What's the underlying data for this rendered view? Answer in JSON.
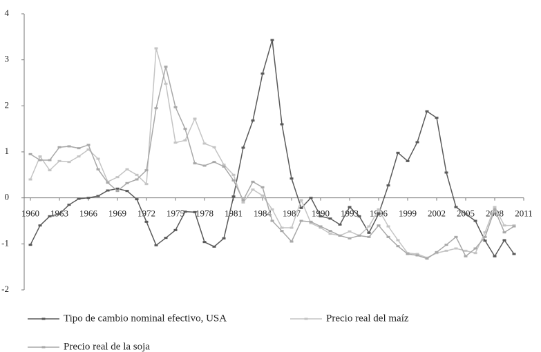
{
  "chart_data": {
    "type": "line",
    "x": [
      1960,
      1961,
      1962,
      1963,
      1964,
      1965,
      1966,
      1967,
      1968,
      1969,
      1970,
      1971,
      1972,
      1973,
      1974,
      1975,
      1976,
      1977,
      1978,
      1979,
      1980,
      1981,
      1982,
      1983,
      1984,
      1985,
      1986,
      1987,
      1988,
      1989,
      1990,
      1991,
      1992,
      1993,
      1994,
      1995,
      1996,
      1997,
      1998,
      1999,
      2000,
      2001,
      2002,
      2003,
      2004,
      2005,
      2006,
      2007,
      2008,
      2009,
      2010
    ],
    "series": [
      {
        "name": "Tipo de cambio nominal efectivo, USA",
        "color": "#595959",
        "values": [
          -1.02,
          -0.6,
          -0.4,
          -0.35,
          -0.15,
          -0.02,
          0.0,
          0.04,
          0.16,
          0.2,
          0.15,
          -0.03,
          -0.52,
          -1.03,
          -0.87,
          -0.7,
          -0.3,
          -0.31,
          -0.96,
          -1.06,
          -0.88,
          0.03,
          1.09,
          1.68,
          2.7,
          3.43,
          1.6,
          0.42,
          -0.22,
          0.0,
          -0.4,
          -0.45,
          -0.58,
          -0.2,
          -0.4,
          -0.76,
          -0.35,
          0.27,
          0.98,
          0.8,
          1.21,
          1.88,
          1.74,
          0.55,
          -0.2,
          -0.35,
          -0.5,
          -0.93,
          -1.27,
          -0.92,
          -1.22
        ]
      },
      {
        "name": "Precio real del maíz",
        "color": "#c4c4c4",
        "values": [
          0.4,
          0.9,
          0.6,
          0.8,
          0.78,
          0.9,
          1.05,
          0.85,
          0.35,
          0.45,
          0.62,
          0.5,
          0.3,
          3.25,
          2.48,
          1.2,
          1.25,
          1.72,
          1.18,
          1.1,
          0.72,
          0.5,
          -0.1,
          0.18,
          0.05,
          -0.25,
          -0.65,
          -0.65,
          -0.05,
          -0.55,
          -0.65,
          -0.78,
          -0.82,
          -0.73,
          -0.82,
          -0.62,
          -0.25,
          -0.62,
          -0.92,
          -1.2,
          -1.22,
          -1.3,
          -1.2,
          -1.15,
          -1.1,
          -1.15,
          -1.2,
          -0.75,
          -0.2,
          -0.6,
          -0.6
        ]
      },
      {
        "name": "Precio real de la soja",
        "color": "#a8a8a8",
        "values": [
          0.95,
          0.82,
          0.82,
          1.1,
          1.12,
          1.08,
          1.15,
          0.62,
          0.33,
          0.15,
          0.32,
          0.4,
          0.6,
          1.95,
          2.85,
          1.97,
          1.5,
          0.75,
          0.7,
          0.78,
          0.68,
          0.38,
          -0.05,
          0.35,
          0.23,
          -0.5,
          -0.72,
          -0.95,
          -0.5,
          -0.52,
          -0.62,
          -0.72,
          -0.82,
          -0.88,
          -0.82,
          -0.85,
          -0.6,
          -0.85,
          -1.05,
          -1.22,
          -1.25,
          -1.32,
          -1.18,
          -1.02,
          -0.85,
          -1.27,
          -1.1,
          -0.85,
          -0.25,
          -0.75,
          -0.62
        ]
      }
    ],
    "xlim": [
      1960,
      2011
    ],
    "xticks": [
      1960,
      1963,
      1966,
      1969,
      1972,
      1975,
      1978,
      1981,
      1984,
      1987,
      1990,
      1993,
      1996,
      1999,
      2002,
      2005,
      2008,
      2011
    ],
    "ylim": [
      -2,
      4
    ],
    "yticks": [
      -2,
      -1,
      0,
      1,
      2,
      3,
      4
    ],
    "grid": false,
    "legend": "bottom"
  }
}
